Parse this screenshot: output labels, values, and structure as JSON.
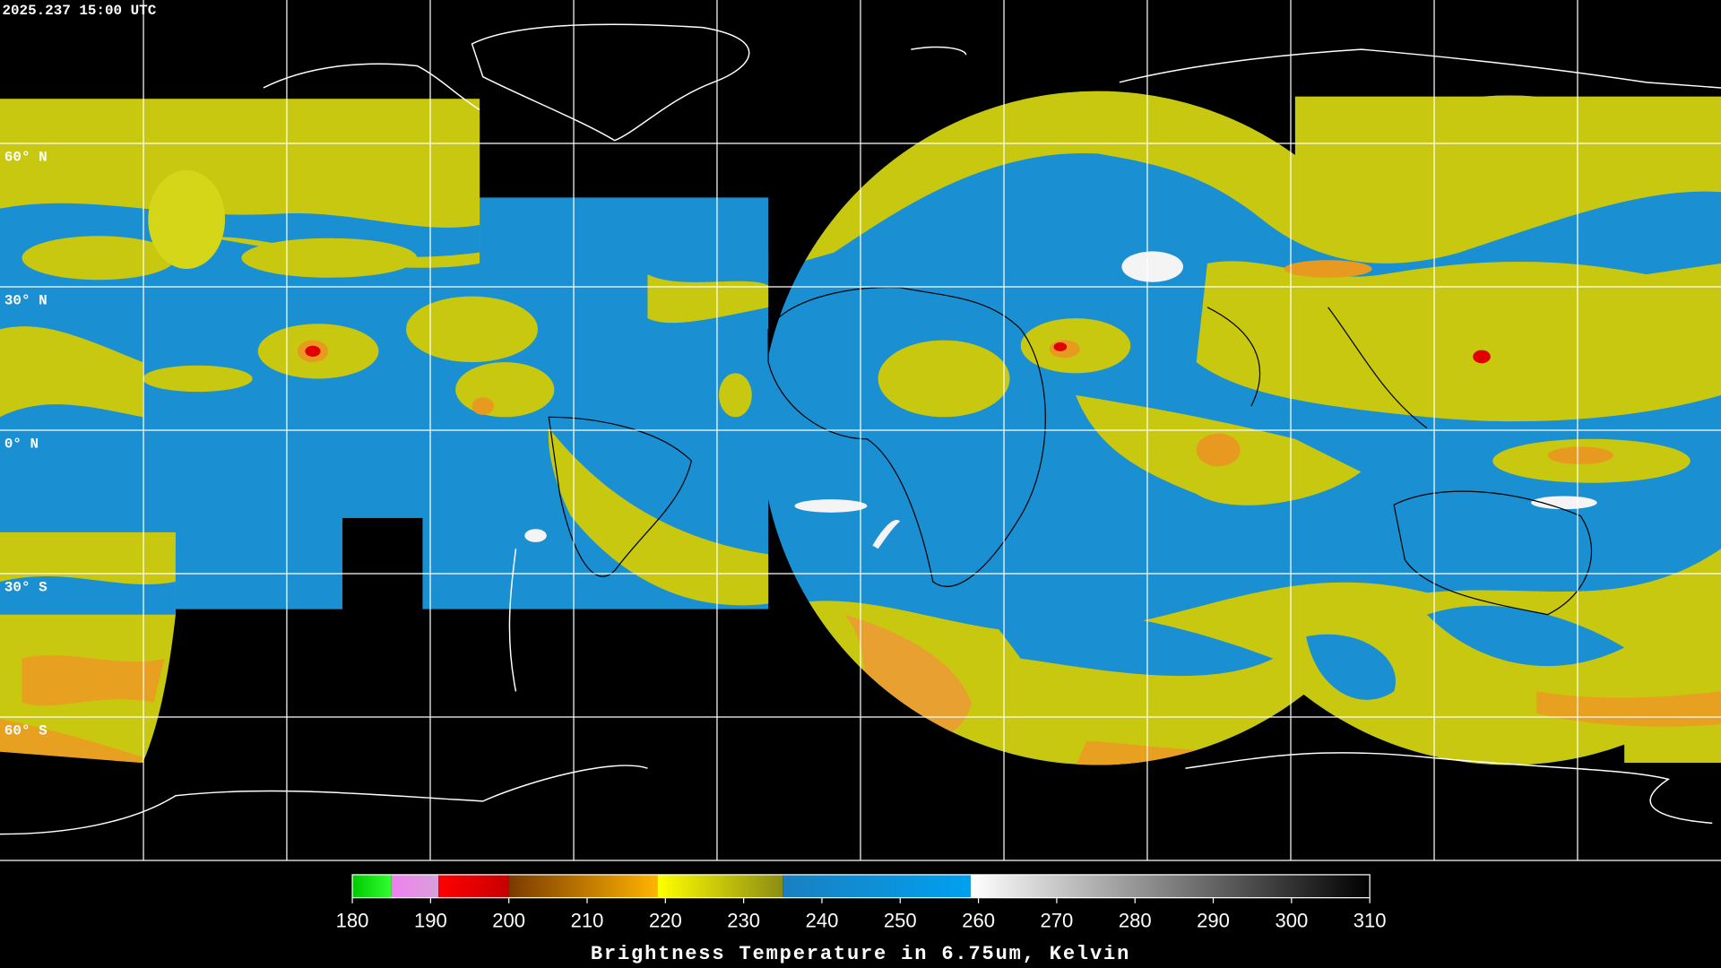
{
  "header": {
    "title": "2025.237 15:00 UTC"
  },
  "map": {
    "lat_range": [
      90,
      -90
    ],
    "lat_ticks": [
      {
        "value": 60,
        "label": "60° N"
      },
      {
        "value": 30,
        "label": "30° N"
      },
      {
        "value": 0,
        "label": "0° N"
      },
      {
        "value": -30,
        "label": "30° S"
      },
      {
        "value": -60,
        "label": "60° S"
      }
    ]
  },
  "colorbar": {
    "range": [
      180,
      310
    ],
    "ticks": [
      180,
      190,
      200,
      210,
      220,
      230,
      240,
      250,
      260,
      270,
      280,
      290,
      300,
      310
    ],
    "label": "Brightness Temperature in 6.75um, Kelvin",
    "segments": [
      {
        "from": 180,
        "to": 185,
        "colors": [
          "#00c800",
          "#30ff30"
        ]
      },
      {
        "from": 185,
        "to": 191,
        "colors": [
          "#f080f0",
          "#d8a0d8"
        ]
      },
      {
        "from": 191,
        "to": 200,
        "colors": [
          "#ff0000",
          "#c80000"
        ]
      },
      {
        "from": 200,
        "to": 219,
        "colors": [
          "#7a3a00",
          "#ffb400"
        ]
      },
      {
        "from": 219,
        "to": 235,
        "colors": [
          "#ffff00",
          "#8c8c14"
        ]
      },
      {
        "from": 235,
        "to": 259,
        "colors": [
          "#1a80c0",
          "#00a0f0"
        ]
      },
      {
        "from": 259,
        "to": 310,
        "colors": [
          "#ffffff",
          "#000000"
        ]
      }
    ]
  }
}
